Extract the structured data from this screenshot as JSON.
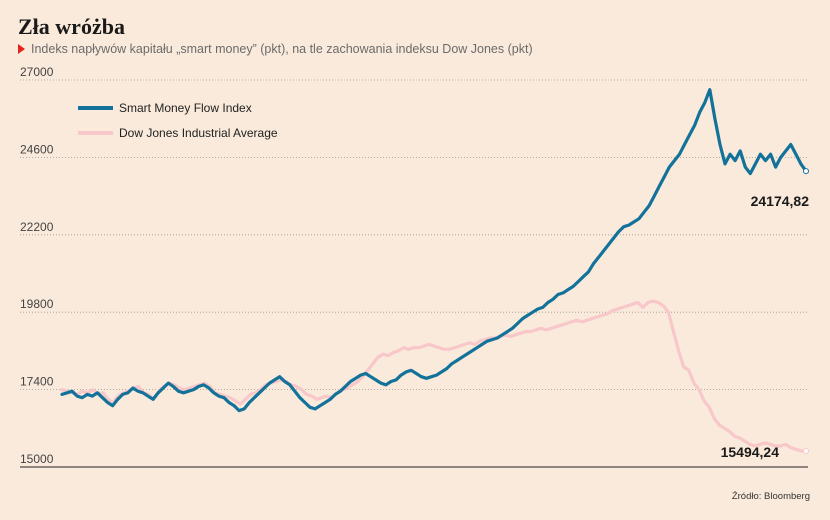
{
  "title": "Zła wróżba",
  "subtitle": "Indeks napływów kapitału „smart money” (pkt), na tle zachowania indeksu Dow Jones (pkt)",
  "source": "Źródło: Bloomberg",
  "colors": {
    "smart": "#13729a",
    "dow": "#f8c7c9",
    "accent": "#e2241b"
  },
  "chart_data": {
    "type": "line",
    "ylim": [
      15000,
      27000
    ],
    "yticks": [
      15000,
      17400,
      19800,
      22200,
      24600,
      27000
    ],
    "legend_position": "top-left",
    "grid": "horizontal-dotted",
    "series": [
      {
        "name": "Smart Money Flow Index",
        "end_label": "24174,82",
        "values": [
          17250,
          17300,
          17350,
          17200,
          17150,
          17250,
          17200,
          17300,
          17150,
          17000,
          16900,
          17100,
          17250,
          17300,
          17450,
          17350,
          17300,
          17200,
          17100,
          17300,
          17450,
          17600,
          17500,
          17350,
          17300,
          17350,
          17400,
          17500,
          17550,
          17450,
          17300,
          17200,
          17150,
          17000,
          16900,
          16750,
          16800,
          17000,
          17150,
          17300,
          17450,
          17600,
          17700,
          17800,
          17650,
          17550,
          17350,
          17150,
          17000,
          16850,
          16800,
          16900,
          17000,
          17100,
          17250,
          17350,
          17500,
          17650,
          17750,
          17850,
          17900,
          17800,
          17700,
          17600,
          17550,
          17650,
          17700,
          17850,
          17950,
          18000,
          17900,
          17800,
          17750,
          17800,
          17850,
          17950,
          18050,
          18200,
          18300,
          18400,
          18500,
          18600,
          18700,
          18800,
          18900,
          18950,
          19000,
          19100,
          19200,
          19300,
          19450,
          19600,
          19700,
          19800,
          19900,
          19950,
          20100,
          20200,
          20350,
          20400,
          20500,
          20600,
          20750,
          20900,
          21050,
          21300,
          21500,
          21700,
          21900,
          22100,
          22300,
          22450,
          22500,
          22600,
          22700,
          22900,
          23100,
          23400,
          23700,
          24000,
          24300,
          24500,
          24700,
          25000,
          25300,
          25600,
          26000,
          26300,
          26700,
          25800,
          25000,
          24400,
          24700,
          24500,
          24800,
          24300,
          24100,
          24400,
          24700,
          24500,
          24700,
          24300,
          24600,
          24800,
          25000,
          24700,
          24400,
          24174.82
        ]
      },
      {
        "name": "Dow Jones Industrial Average",
        "end_label": "15494,24",
        "values": [
          17400,
          17350,
          17300,
          17250,
          17350,
          17300,
          17400,
          17250,
          17300,
          17100,
          17000,
          17200,
          17300,
          17350,
          17450,
          17500,
          17300,
          17250,
          17100,
          17350,
          17500,
          17600,
          17550,
          17450,
          17400,
          17450,
          17500,
          17550,
          17600,
          17500,
          17300,
          17250,
          17200,
          17150,
          17050,
          16950,
          17100,
          17250,
          17300,
          17400,
          17550,
          17600,
          17650,
          17700,
          17650,
          17550,
          17500,
          17400,
          17250,
          17200,
          17100,
          17150,
          17200,
          17150,
          17300,
          17400,
          17450,
          17550,
          17650,
          17800,
          18000,
          18200,
          18400,
          18500,
          18450,
          18550,
          18600,
          18700,
          18650,
          18700,
          18700,
          18750,
          18800,
          18750,
          18700,
          18650,
          18650,
          18700,
          18750,
          18800,
          18850,
          18800,
          18900,
          18950,
          19000,
          19000,
          19050,
          19100,
          19050,
          19100,
          19150,
          19200,
          19200,
          19250,
          19300,
          19250,
          19300,
          19350,
          19400,
          19450,
          19500,
          19550,
          19500,
          19550,
          19600,
          19650,
          19700,
          19750,
          19850,
          19900,
          19950,
          20000,
          20050,
          20100,
          19950,
          20100,
          20150,
          20100,
          20000,
          19800,
          19200,
          18600,
          18100,
          18000,
          17600,
          17400,
          17050,
          16850,
          16500,
          16300,
          16200,
          16100,
          15950,
          15900,
          15800,
          15700,
          15650,
          15700,
          15750,
          15700,
          15650,
          15650,
          15700,
          15600,
          15550,
          15500,
          15494.24
        ]
      }
    ]
  }
}
